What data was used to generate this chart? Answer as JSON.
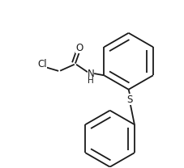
{
  "background_color": "#ffffff",
  "line_color": "#1a1a1a",
  "line_width": 1.3,
  "font_size": 8.5,
  "figsize": [
    2.27,
    2.08
  ],
  "dpi": 100,
  "xlim": [
    0,
    10
  ],
  "ylim": [
    0,
    9.1
  ]
}
